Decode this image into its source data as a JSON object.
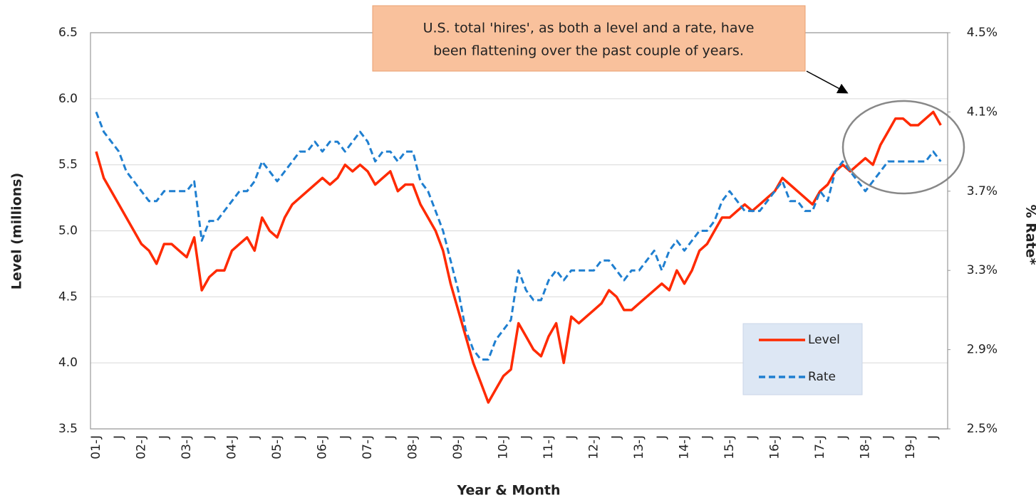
{
  "chart_data": {
    "type": "line",
    "annotation": [
      "U.S. total 'hires', as both a level and a rate, have",
      "been flattening over the past couple of years."
    ],
    "xlabel": "Year & Month",
    "ylabel": "Level (millions)",
    "y2label": "% Rate*",
    "categories": [
      "01-J",
      null,
      null,
      "J",
      null,
      null,
      "02-J",
      null,
      null,
      "J",
      null,
      null,
      "03-J",
      null,
      null,
      "J",
      null,
      null,
      "04-J",
      null,
      null,
      "J",
      null,
      null,
      "05-J",
      null,
      null,
      "J",
      null,
      null,
      "06-J",
      null,
      null,
      "J",
      null,
      null,
      "07-J",
      null,
      null,
      "J",
      null,
      null,
      "08-J",
      null,
      null,
      "J",
      null,
      null,
      "09-J",
      null,
      null,
      "J",
      null,
      null,
      "10-J",
      null,
      null,
      "J",
      null,
      null,
      "11-J",
      null,
      null,
      "J",
      null,
      null,
      "12-J",
      null,
      null,
      "J",
      null,
      null,
      "13-J",
      null,
      null,
      "J",
      null,
      null,
      "14-J",
      null,
      null,
      "J",
      null,
      null,
      "15-J",
      null,
      null,
      "J",
      null,
      null,
      "16-J",
      null,
      null,
      "J",
      null,
      null,
      "17-J",
      null,
      null,
      "J",
      null,
      null,
      "18-J",
      null,
      null,
      "J",
      null,
      null,
      "19-J",
      null,
      null,
      "J",
      null
    ],
    "series": [
      {
        "name": "Level",
        "color": "#ff2a00",
        "dash": false,
        "values": [
          5.6,
          5.4,
          5.3,
          5.2,
          5.1,
          5.0,
          4.9,
          4.85,
          4.75,
          4.9,
          4.9,
          4.85,
          4.8,
          4.95,
          4.55,
          4.65,
          4.7,
          4.7,
          4.85,
          4.9,
          4.95,
          4.85,
          5.1,
          5.0,
          4.95,
          5.1,
          5.2,
          5.25,
          5.3,
          5.35,
          5.4,
          5.35,
          5.4,
          5.5,
          5.45,
          5.5,
          5.45,
          5.35,
          5.4,
          5.45,
          5.3,
          5.35,
          5.35,
          5.2,
          5.1,
          5.0,
          4.85,
          4.6,
          4.4,
          4.2,
          4.0,
          3.85,
          3.7,
          3.8,
          3.9,
          3.95,
          4.3,
          4.2,
          4.1,
          4.05,
          4.2,
          4.3,
          4.0,
          4.35,
          4.3,
          4.35,
          4.4,
          4.45,
          4.55,
          4.5,
          4.4,
          4.4,
          4.45,
          4.5,
          4.55,
          4.6,
          4.55,
          4.7,
          4.6,
          4.7,
          4.85,
          4.9,
          5.0,
          5.1,
          5.1,
          5.15,
          5.2,
          5.15,
          5.2,
          5.25,
          5.3,
          5.4,
          5.35,
          5.3,
          5.25,
          5.2,
          5.3,
          5.35,
          5.45,
          5.5,
          5.45,
          5.5,
          5.55,
          5.5,
          5.65,
          5.75,
          5.85,
          5.85,
          5.8,
          5.8,
          5.85,
          5.9,
          5.8
        ]
      },
      {
        "name": "Rate",
        "color": "#1f7fd0",
        "dash": true,
        "axis": "y2",
        "values": [
          4.1,
          4.0,
          3.95,
          3.9,
          3.8,
          3.75,
          3.7,
          3.65,
          3.65,
          3.7,
          3.7,
          3.7,
          3.7,
          3.75,
          3.45,
          3.55,
          3.55,
          3.6,
          3.65,
          3.7,
          3.7,
          3.75,
          3.85,
          3.8,
          3.75,
          3.8,
          3.85,
          3.9,
          3.9,
          3.95,
          3.9,
          3.95,
          3.95,
          3.9,
          3.95,
          4.0,
          3.95,
          3.85,
          3.9,
          3.9,
          3.85,
          3.9,
          3.9,
          3.75,
          3.7,
          3.6,
          3.5,
          3.35,
          3.2,
          3.0,
          2.9,
          2.85,
          2.85,
          2.95,
          3.0,
          3.05,
          3.3,
          3.2,
          3.15,
          3.15,
          3.25,
          3.3,
          3.25,
          3.3,
          3.3,
          3.3,
          3.3,
          3.35,
          3.35,
          3.3,
          3.25,
          3.3,
          3.3,
          3.35,
          3.4,
          3.3,
          3.4,
          3.45,
          3.4,
          3.45,
          3.5,
          3.5,
          3.55,
          3.65,
          3.7,
          3.65,
          3.6,
          3.6,
          3.6,
          3.65,
          3.7,
          3.75,
          3.65,
          3.65,
          3.6,
          3.6,
          3.7,
          3.65,
          3.8,
          3.85,
          3.8,
          3.75,
          3.7,
          3.75,
          3.8,
          3.85,
          3.85,
          3.85,
          3.85,
          3.85,
          3.85,
          3.9,
          3.85
        ]
      }
    ],
    "ylim": [
      3.5,
      6.5
    ],
    "yticks": [
      3.5,
      {
        "value": 4,
        "label": "4.0"
      },
      4.5,
      {
        "value": 5,
        "label": "5.0"
      },
      5.5,
      {
        "value": 6,
        "label": "6.0"
      },
      6.5
    ],
    "y2lim": [
      2.5,
      4.5
    ],
    "y2ticks": [
      {
        "value": 2.5,
        "label": "2.5%"
      },
      {
        "value": 2.9,
        "label": "2.9%"
      },
      {
        "value": 3.3,
        "label": "3.3%"
      },
      {
        "value": 3.7,
        "label": "3.7%"
      },
      {
        "value": 4.1,
        "label": "4.1%"
      },
      {
        "value": 4.5,
        "label": "4.5%"
      }
    ],
    "grid": true,
    "legend": "lower right"
  }
}
